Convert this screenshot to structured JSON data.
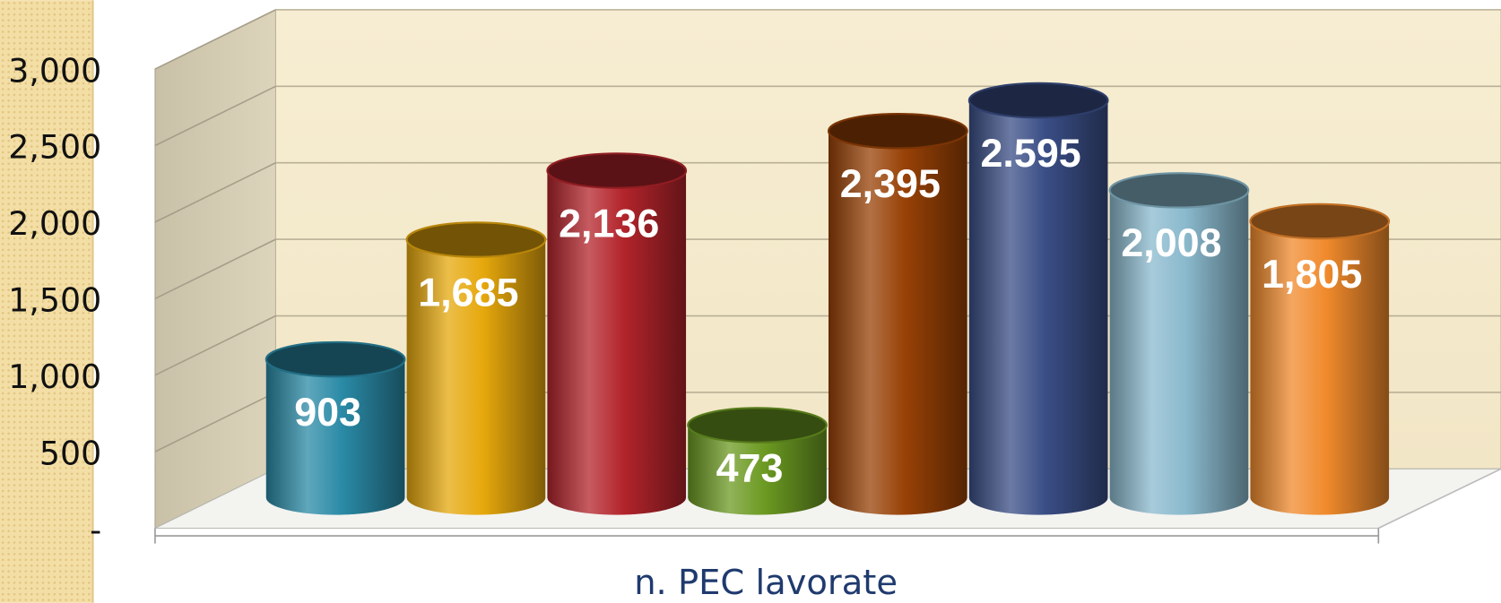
{
  "chart_data": {
    "type": "bar",
    "xlabel": "n. PEC lavorate",
    "values": [
      903,
      1685,
      2136,
      473,
      2395,
      2595,
      2008,
      1805
    ],
    "value_labels": [
      "903",
      "1,685",
      "2,136",
      "473",
      "2,395",
      "2.595",
      "2,008",
      "1,805"
    ],
    "colors": [
      "#2a8aa6",
      "#e6a80c",
      "#b3242b",
      "#6c9a22",
      "#984106",
      "#3a4e86",
      "#8ab9cd",
      "#f08a2c"
    ],
    "ylim": [
      0,
      3000
    ],
    "yticks": [
      {
        "value": 0,
        "label": "-"
      },
      500,
      {
        "value": 1000,
        "label": "1,000"
      },
      {
        "value": 1500,
        "label": "1,500"
      },
      {
        "value": 2000,
        "label": "2,000"
      },
      {
        "value": 2500,
        "label": "2,500"
      },
      {
        "value": 3000,
        "label": "3,000"
      }
    ],
    "grid": true
  }
}
